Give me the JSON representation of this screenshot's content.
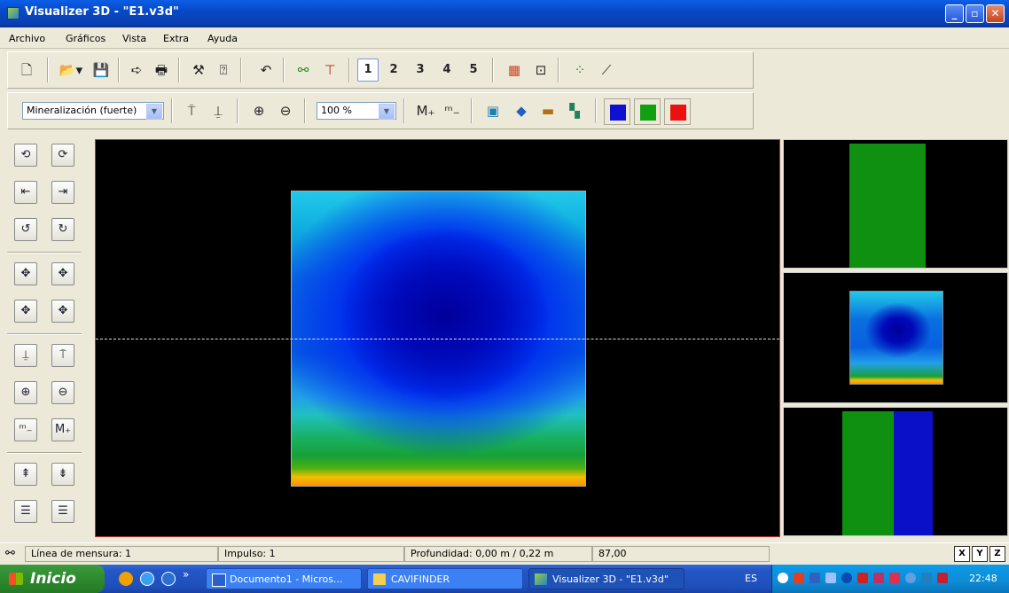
{
  "window": {
    "title": "Visualizer 3D - \"E1.v3d\""
  },
  "window_controls": {
    "minimize": "_",
    "maximize": "▫",
    "close": "✕"
  },
  "menu": [
    "Archivo",
    "Gráficos",
    "Vista",
    "Extra",
    "Ayuda"
  ],
  "toolbar1": {
    "view_numbers": [
      "1",
      "2",
      "3",
      "4",
      "5"
    ]
  },
  "toolbar2": {
    "mode_select": "Mineralización (fuerte)",
    "zoom_select": "100 %",
    "color_buttons": [
      "#1010d0",
      "#10a010",
      "#ee1010"
    ]
  },
  "statusbar": {
    "linea": "Línea de mensura: 1",
    "impulso": "Impulso: 1",
    "profundidad": "Profundidad: 0,00 m / 0,22 m",
    "value": "87,00",
    "axes": [
      "X",
      "Y",
      "Z"
    ]
  },
  "taskbar": {
    "start": "Inicio",
    "tasks": [
      {
        "label": "Documento1 - Micros..."
      },
      {
        "label": "CAVIFINDER"
      },
      {
        "label": "Visualizer 3D - \"E1.v3d\""
      }
    ],
    "language": "ES",
    "clock": "22:48",
    "overflow": "»"
  },
  "colors": {
    "titlebar": "#0a5ee6",
    "taskbar": "#245edb",
    "start": "#2f8a2f",
    "view_background": "#000000"
  }
}
